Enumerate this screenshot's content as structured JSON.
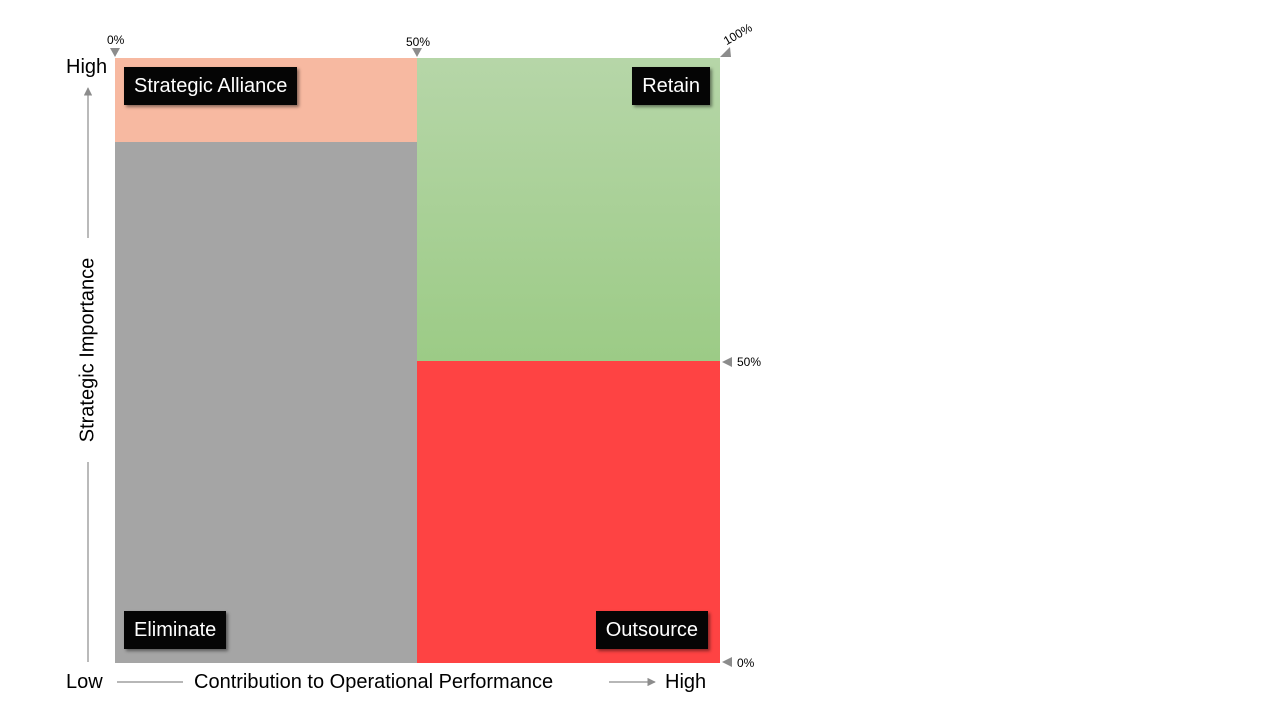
{
  "quadrants": {
    "strategic_alliance": {
      "label": "Strategic Alliance",
      "color": "#f7b9a1"
    },
    "retain": {
      "label": "Retain",
      "color_top": "#b6d6a8",
      "color_bottom": "#9ccb86"
    },
    "eliminate": {
      "label": "Eliminate",
      "color": "#a5a5a5"
    },
    "outsource": {
      "label": "Outsource",
      "color": "#fe4343"
    }
  },
  "axes": {
    "y_title": "Strategic Importance",
    "y_high": "High",
    "x_low": "Low",
    "x_title": "Contribution to Operational Performance",
    "x_high": "High"
  },
  "ticks": {
    "x_0": "0%",
    "x_50": "50%",
    "x_100": "100%",
    "y_50": "50%",
    "y_0": "0%"
  }
}
